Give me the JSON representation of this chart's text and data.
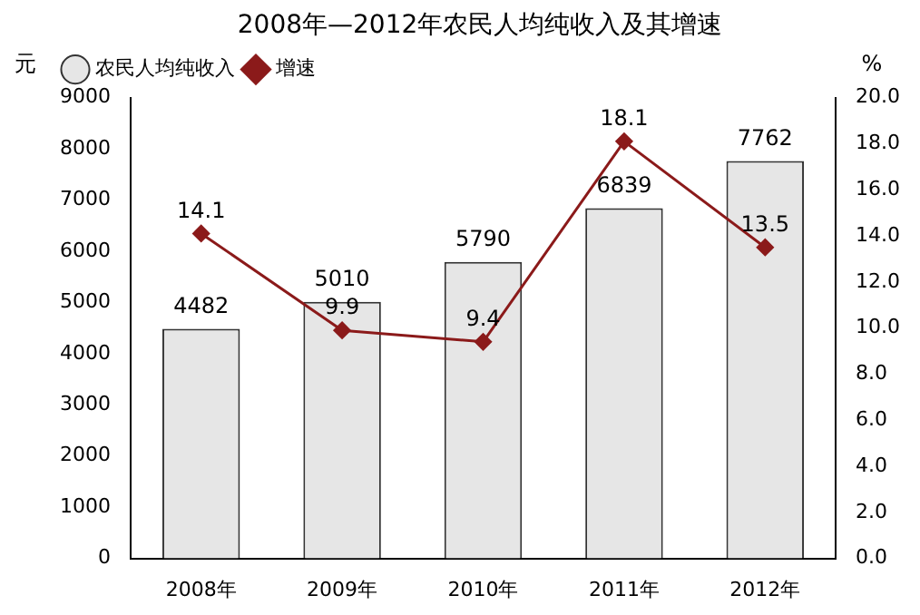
{
  "chart_data": {
    "type": "bar",
    "title": "2008年—2012年农民人均纯收入及其增速",
    "ylabel": "元",
    "y2label": "%",
    "categories": [
      "2008年",
      "2009年",
      "2010年",
      "2011年",
      "2012年"
    ],
    "series": [
      {
        "name": "农民人均纯收入",
        "color": "#e6e6e6",
        "values": [
          4482,
          5010,
          5790,
          6839,
          7762
        ]
      },
      {
        "name": "增速",
        "type": "line",
        "axis": "y2",
        "color": "#8b1a1a",
        "values": [
          14.1,
          9.9,
          9.4,
          18.1,
          13.5
        ]
      }
    ],
    "ylim": [
      0,
      9000
    ],
    "yticks": [
      0,
      1000,
      2000,
      3000,
      4000,
      5000,
      6000,
      7000,
      8000,
      9000
    ],
    "y2lim": [
      0,
      20
    ],
    "y2ticks": [
      {
        "value": 0,
        "label": "0.0"
      },
      {
        "value": 2,
        "label": "2.0"
      },
      {
        "value": 4,
        "label": "4.0"
      },
      {
        "value": 6,
        "label": "6.0"
      },
      {
        "value": 8,
        "label": "8.0"
      },
      {
        "value": 10,
        "label": "10.0"
      },
      {
        "value": 12,
        "label": "12.0"
      },
      {
        "value": 14,
        "label": "14.0"
      },
      {
        "value": 16,
        "label": "16.0"
      },
      {
        "value": 18,
        "label": "18.0"
      },
      {
        "value": 20,
        "label": "20.0"
      }
    ],
    "legend": "top left",
    "marker": "diamond",
    "data_labels": true,
    "grid": false
  }
}
